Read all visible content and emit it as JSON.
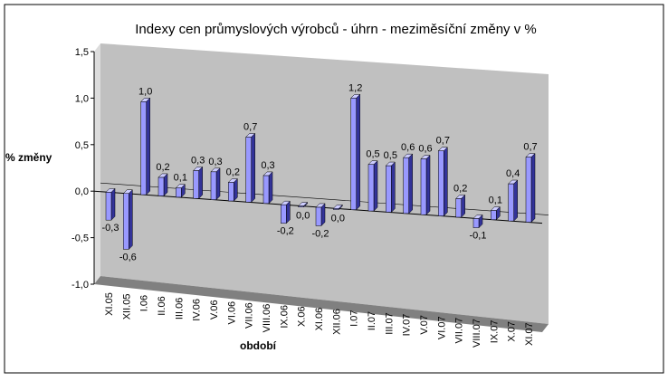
{
  "chart_data": {
    "type": "bar",
    "title": "Indexy cen průmyslových výrobců - úhrn - meziměsíční změny v %",
    "ylabel": "% změny",
    "xlabel": "období",
    "ylim": [
      -1.0,
      1.5
    ],
    "yticks": [
      "1,5",
      "1,0",
      "0,5",
      "0,0",
      "-0,5",
      "-1,0"
    ],
    "ytick_values": [
      1.5,
      1.0,
      0.5,
      0.0,
      -0.5,
      -1.0
    ],
    "categories": [
      "XI.05",
      "XII.05",
      "I.06",
      "II.06",
      "III.06",
      "IV.06",
      "V.06",
      "VI.06",
      "VII.06",
      "VIII.06",
      "IX.06",
      "X.06",
      "XI.06",
      "XII.06",
      "I.07",
      "II.07",
      "III.07",
      "IV.07",
      "V.07",
      "VI.07",
      "VII.07",
      "VIII.07",
      "IX.07",
      "X.07",
      "XI.07"
    ],
    "values": [
      -0.3,
      -0.6,
      1.0,
      0.2,
      0.1,
      0.3,
      0.3,
      0.2,
      0.7,
      0.3,
      -0.2,
      0.0,
      -0.2,
      0.0,
      1.2,
      0.5,
      0.5,
      0.6,
      0.6,
      0.7,
      0.2,
      -0.1,
      0.1,
      0.4,
      0.7
    ],
    "data_labels": [
      "-0,3",
      "-0,6",
      "1,0",
      "0,2",
      "0,1",
      "0,3",
      "0,3",
      "0,2",
      "0,7",
      "0,3",
      "-0,2",
      "0,0",
      "-0,2",
      "0,0",
      "1,2",
      "0,5",
      "0,5",
      "0,6",
      "0,6",
      "0,7",
      "0,2",
      "-0,1",
      "0,1",
      "0,4",
      "0,7"
    ],
    "grid": false,
    "legend": "none",
    "colors": {
      "bar_front": "#9999ff",
      "bar_side": "#333399",
      "bar_top": "#ccccff",
      "back_wall": "#c0c0c0",
      "side_wall": "#dcdcdc",
      "floor": "#808080"
    }
  }
}
